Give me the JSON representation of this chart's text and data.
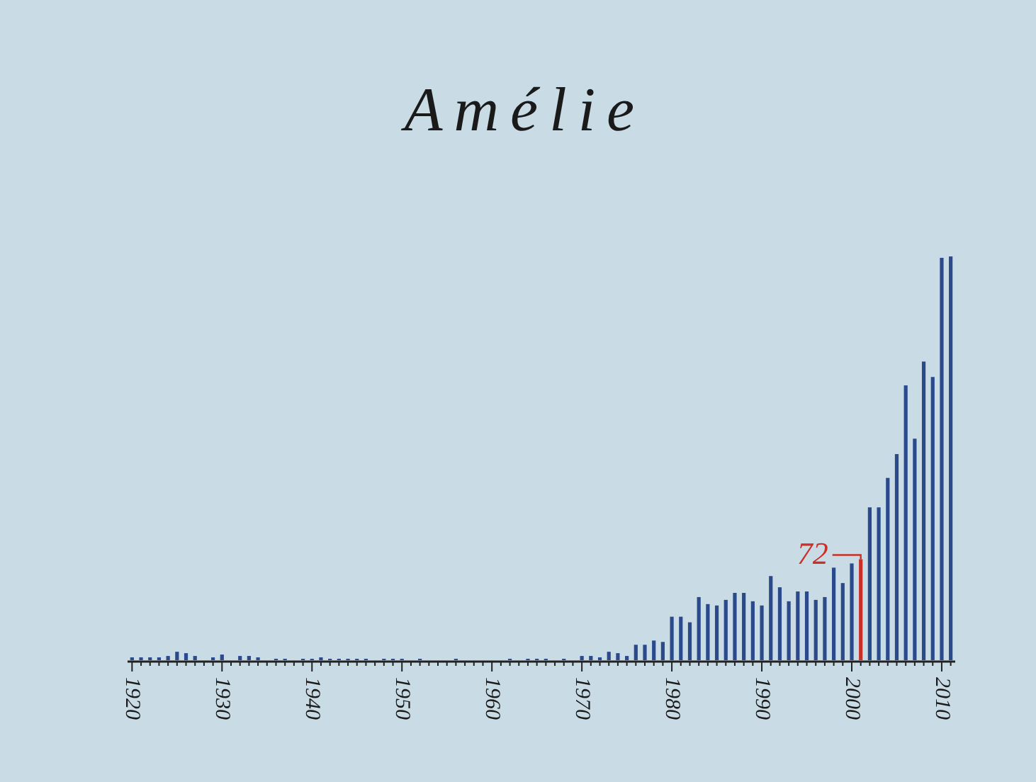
{
  "chart_data": {
    "type": "bar",
    "title": "Amélie",
    "x": [
      1920,
      1921,
      1922,
      1923,
      1924,
      1925,
      1926,
      1927,
      1928,
      1929,
      1930,
      1931,
      1932,
      1933,
      1934,
      1935,
      1936,
      1937,
      1938,
      1939,
      1940,
      1941,
      1942,
      1943,
      1944,
      1945,
      1946,
      1947,
      1948,
      1949,
      1950,
      1951,
      1952,
      1953,
      1954,
      1955,
      1956,
      1957,
      1958,
      1959,
      1960,
      1961,
      1962,
      1963,
      1964,
      1965,
      1966,
      1967,
      1968,
      1969,
      1970,
      1971,
      1972,
      1973,
      1974,
      1975,
      1976,
      1977,
      1978,
      1979,
      1980,
      1981,
      1982,
      1983,
      1984,
      1985,
      1986,
      1987,
      1988,
      1989,
      1990,
      1991,
      1992,
      1993,
      1994,
      1995,
      1996,
      1997,
      1998,
      1999,
      2000,
      2001,
      2002,
      2003,
      2004,
      2005,
      2006,
      2007,
      2008,
      2009,
      2010,
      2011
    ],
    "values": [
      2,
      2,
      2,
      2,
      3,
      6,
      5,
      3,
      0,
      2,
      4,
      0,
      3,
      3,
      2,
      0,
      1,
      1,
      0,
      1,
      1,
      2,
      1,
      1,
      1,
      1,
      1,
      0,
      1,
      1,
      1,
      0,
      1,
      0,
      0,
      0,
      1,
      0,
      0,
      0,
      0,
      0,
      1,
      0,
      1,
      1,
      1,
      0,
      1,
      0,
      3,
      3,
      2,
      6,
      5,
      3,
      11,
      11,
      14,
      13,
      31,
      31,
      27,
      45,
      40,
      39,
      43,
      48,
      48,
      42,
      39,
      60,
      52,
      42,
      49,
      49,
      43,
      45,
      66,
      55,
      69,
      72,
      109,
      109,
      130,
      147,
      196,
      158,
      213,
      202,
      287,
      288
    ],
    "colors": [
      "#2b4a8c",
      "#2b4a8c",
      "#2b4a8c",
      "#2b4a8c",
      "#2b4a8c",
      "#2b4a8c",
      "#2b4a8c",
      "#2b4a8c",
      "#2b4a8c",
      "#2b4a8c",
      "#2b4a8c",
      "#2b4a8c",
      "#2b4a8c",
      "#2b4a8c",
      "#2b4a8c",
      "#2b4a8c",
      "#2b4a8c",
      "#2b4a8c",
      "#2b4a8c",
      "#2b4a8c",
      "#2b4a8c",
      "#2b4a8c",
      "#2b4a8c",
      "#2b4a8c",
      "#2b4a8c",
      "#2b4a8c",
      "#2b4a8c",
      "#2b4a8c",
      "#2b4a8c",
      "#2b4a8c",
      "#2b4a8c",
      "#2b4a8c",
      "#2b4a8c",
      "#2b4a8c",
      "#2b4a8c",
      "#2b4a8c",
      "#2b4a8c",
      "#2b4a8c",
      "#2b4a8c",
      "#2b4a8c",
      "#2b4a8c",
      "#2b4a8c",
      "#2b4a8c",
      "#2b4a8c",
      "#2b4a8c",
      "#2b4a8c",
      "#2b4a8c",
      "#2b4a8c",
      "#2b4a8c",
      "#2b4a8c",
      "#2b4a8c",
      "#2b4a8c",
      "#2b4a8c",
      "#2b4a8c",
      "#2b4a8c",
      "#2b4a8c",
      "#2b4a8c",
      "#2b4a8c",
      "#2b4a8c",
      "#2b4a8c",
      "#2b4a8c",
      "#2b4a8c",
      "#2b4a8c",
      "#2b4a8c",
      "#2b4a8c",
      "#2b4a8c",
      "#2b4a8c",
      "#2b4a8c",
      "#2b4a8c",
      "#2b4a8c",
      "#2b4a8c",
      "#2b4a8c",
      "#2b4a8c",
      "#2b4a8c",
      "#2b4a8c",
      "#2b4a8c",
      "#2b4a8c",
      "#2b4a8c",
      "#2b4a8c",
      "#2b4a8c",
      "#2b4a8c",
      "#c8302a",
      "#2b4a8c",
      "#2b4a8c",
      "#2b4a8c",
      "#2b4a8c",
      "#2b4a8c",
      "#2b4a8c",
      "#2b4a8c",
      "#2b4a8c",
      "#2b4a8c",
      "#2b4a8c"
    ],
    "value_labels": [
      null,
      null,
      null,
      null,
      null,
      null,
      null,
      null,
      null,
      null,
      null,
      null,
      null,
      null,
      null,
      null,
      null,
      null,
      null,
      null,
      null,
      null,
      null,
      null,
      null,
      null,
      null,
      null,
      null,
      null,
      null,
      null,
      null,
      null,
      null,
      null,
      null,
      null,
      null,
      null,
      null,
      null,
      null,
      null,
      null,
      null,
      null,
      null,
      null,
      null,
      null,
      null,
      null,
      null,
      null,
      null,
      null,
      null,
      null,
      null,
      null,
      null,
      null,
      null,
      null,
      null,
      null,
      null,
      null,
      null,
      null,
      null,
      null,
      null,
      null,
      null,
      null,
      null,
      null,
      null,
      null,
      "72",
      null,
      null,
      null,
      null,
      null,
      null,
      null,
      null,
      null,
      null
    ],
    "xlim": [
      1919.5,
      2011.5
    ],
    "xticks": [
      1920,
      {
        "value": 1921,
        "label": null
      },
      {
        "value": 1922,
        "label": null
      },
      {
        "value": 1923,
        "label": null
      },
      {
        "value": 1924,
        "label": null
      },
      {
        "value": 1925,
        "label": null
      },
      {
        "value": 1926,
        "label": null
      },
      {
        "value": 1927,
        "label": null
      },
      {
        "value": 1928,
        "label": null
      },
      {
        "value": 1929,
        "label": null
      },
      1930,
      {
        "value": 1931,
        "label": null
      },
      {
        "value": 1932,
        "label": null
      },
      {
        "value": 1933,
        "label": null
      },
      {
        "value": 1934,
        "label": null
      },
      {
        "value": 1935,
        "label": null
      },
      {
        "value": 1936,
        "label": null
      },
      {
        "value": 1937,
        "label": null
      },
      {
        "value": 1938,
        "label": null
      },
      {
        "value": 1939,
        "label": null
      },
      1940,
      {
        "value": 1941,
        "label": null
      },
      {
        "value": 1942,
        "label": null
      },
      {
        "value": 1943,
        "label": null
      },
      {
        "value": 1944,
        "label": null
      },
      {
        "value": 1945,
        "label": null
      },
      {
        "value": 1946,
        "label": null
      },
      {
        "value": 1947,
        "label": null
      },
      {
        "value": 1948,
        "label": null
      },
      {
        "value": 1949,
        "label": null
      },
      1950,
      {
        "value": 1951,
        "label": null
      },
      {
        "value": 1952,
        "label": null
      },
      {
        "value": 1953,
        "label": null
      },
      {
        "value": 1954,
        "label": null
      },
      {
        "value": 1955,
        "label": null
      },
      {
        "value": 1956,
        "label": null
      },
      {
        "value": 1957,
        "label": null
      },
      {
        "value": 1958,
        "label": null
      },
      {
        "value": 1959,
        "label": null
      },
      1960,
      {
        "value": 1961,
        "label": null
      },
      {
        "value": 1962,
        "label": null
      },
      {
        "value": 1963,
        "label": null
      },
      {
        "value": 1964,
        "label": null
      },
      {
        "value": 1965,
        "label": null
      },
      {
        "value": 1966,
        "label": null
      },
      {
        "value": 1967,
        "label": null
      },
      {
        "value": 1968,
        "label": null
      },
      {
        "value": 1969,
        "label": null
      },
      1970,
      {
        "value": 1971,
        "label": null
      },
      {
        "value": 1972,
        "label": null
      },
      {
        "value": 1973,
        "label": null
      },
      {
        "value": 1974,
        "label": null
      },
      {
        "value": 1975,
        "label": null
      },
      {
        "value": 1976,
        "label": null
      },
      {
        "value": 1977,
        "label": null
      },
      {
        "value": 1978,
        "label": null
      },
      {
        "value": 1979,
        "label": null
      },
      1980,
      {
        "value": 1981,
        "label": null
      },
      {
        "value": 1982,
        "label": null
      },
      {
        "value": 1983,
        "label": null
      },
      {
        "value": 1984,
        "label": null
      },
      {
        "value": 1985,
        "label": null
      },
      {
        "value": 1986,
        "label": null
      },
      {
        "value": 1987,
        "label": null
      },
      {
        "value": 1988,
        "label": null
      },
      {
        "value": 1989,
        "label": null
      },
      1990,
      {
        "value": 1991,
        "label": null
      },
      {
        "value": 1992,
        "label": null
      },
      {
        "value": 1993,
        "label": null
      },
      {
        "value": 1994,
        "label": null
      },
      {
        "value": 1995,
        "label": null
      },
      {
        "value": 1996,
        "label": null
      },
      {
        "value": 1997,
        "label": null
      },
      {
        "value": 1998,
        "label": null
      },
      {
        "value": 1999,
        "label": null
      },
      2000,
      {
        "value": 2001,
        "label": null
      },
      {
        "value": 2002,
        "label": null
      },
      {
        "value": 2003,
        "label": null
      },
      {
        "value": 2004,
        "label": null
      },
      {
        "value": 2005,
        "label": null
      },
      {
        "value": 2006,
        "label": null
      },
      {
        "value": 2007,
        "label": null
      },
      {
        "value": 2008,
        "label": null
      },
      {
        "value": 2009,
        "label": null
      },
      2010,
      {
        "value": 2011,
        "label": null
      }
    ]
  }
}
